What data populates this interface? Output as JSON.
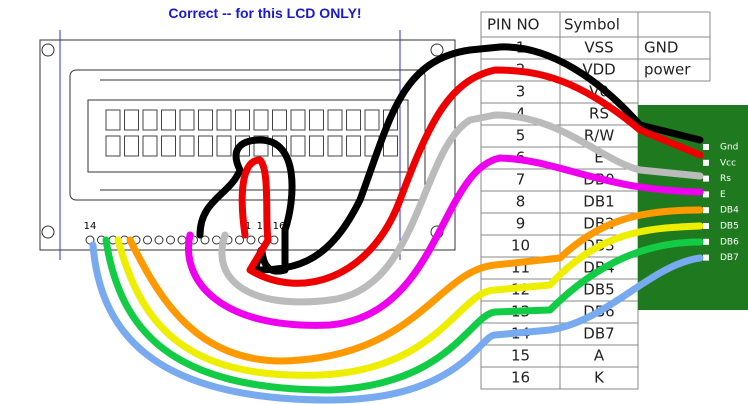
{
  "title": "Correct -- for this LCD ONLY!",
  "table": {
    "headers": [
      "PIN NO",
      "Symbol"
    ],
    "rows": [
      [
        "1",
        "VSS",
        "GND"
      ],
      [
        "2",
        "VDD",
        "power"
      ],
      [
        "3",
        "V0"
      ],
      [
        "4",
        "RS"
      ],
      [
        "5",
        "R/W"
      ],
      [
        "6",
        "E"
      ],
      [
        "7",
        "DB0"
      ],
      [
        "8",
        "DB1"
      ],
      [
        "9",
        "DB2"
      ],
      [
        "10",
        "DB3"
      ],
      [
        "11",
        "DB4"
      ],
      [
        "12",
        "DB5"
      ],
      [
        "13",
        "DB6"
      ],
      [
        "14",
        "DB7"
      ],
      [
        "15",
        "A"
      ],
      [
        "16",
        "K"
      ]
    ]
  },
  "board": {
    "labels": [
      "Gnd",
      "Vcc",
      "Rs",
      "E",
      "DB4",
      "DB5",
      "DB6",
      "DB7"
    ]
  },
  "lcd": {
    "pin_labels": [
      "14",
      "1",
      "15",
      "16"
    ]
  }
}
